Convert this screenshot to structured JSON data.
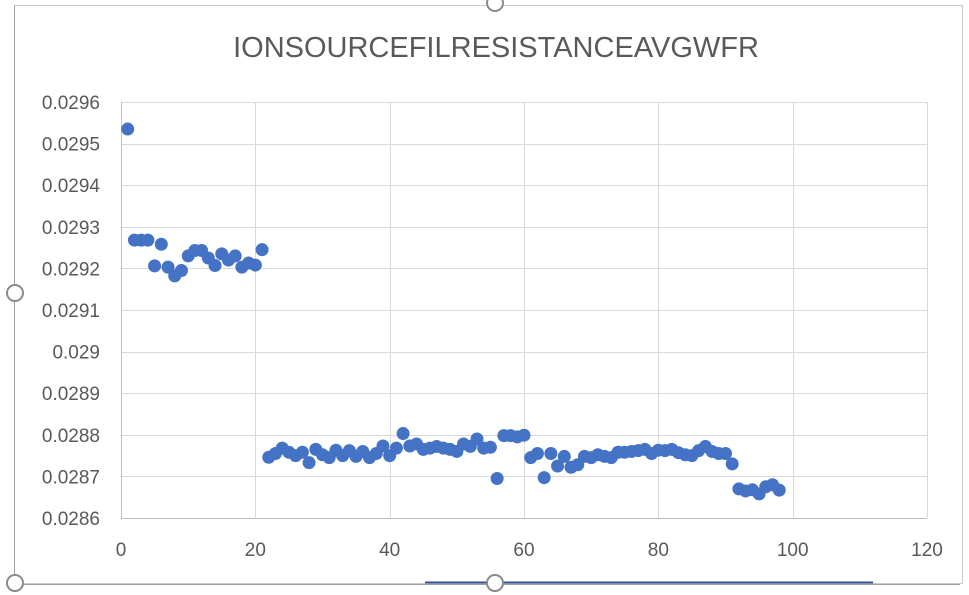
{
  "colors": {
    "marker": "#4472C4",
    "grid": "#D9D9D9",
    "text": "#595959"
  },
  "chart_data": {
    "type": "scatter",
    "title": "IONSOURCEFILRESISTANCEAVGWFR",
    "xlabel": "",
    "ylabel": "",
    "xlim": [
      0,
      120
    ],
    "ylim": [
      0.0286,
      0.0296
    ],
    "x_ticks": [
      0,
      20,
      40,
      60,
      80,
      100,
      120
    ],
    "x_tick_labels": [
      "0",
      "20",
      "40",
      "60",
      "80",
      "100",
      "120"
    ],
    "y_ticks": [
      0.0286,
      0.0287,
      0.0288,
      0.0289,
      0.029,
      0.0291,
      0.0292,
      0.0293,
      0.0294,
      0.0295,
      0.0296
    ],
    "y_tick_labels": [
      "0.0286",
      "0.0287",
      "0.0288",
      "0.0289",
      "0.029",
      "0.0291",
      "0.0292",
      "0.0293",
      "0.0294",
      "0.0295",
      "0.0296"
    ],
    "grid": true,
    "legend": "none",
    "series": [
      {
        "x": [
          1,
          2,
          3,
          4,
          5,
          6,
          7,
          8,
          9,
          10,
          11,
          12,
          13,
          14,
          15,
          16,
          17,
          18,
          19,
          20,
          21,
          22,
          23,
          24,
          25,
          26,
          27,
          28,
          29,
          30,
          31,
          32,
          33,
          34,
          35,
          36,
          37,
          38,
          39,
          40,
          41,
          42,
          43,
          44,
          45,
          46,
          47,
          48,
          49,
          50,
          51,
          52,
          53,
          54,
          55,
          56,
          57,
          58,
          59,
          60,
          61,
          62,
          63,
          64,
          65,
          66,
          67,
          68,
          69,
          70,
          71,
          72,
          73,
          74,
          75,
          76,
          77,
          78,
          79,
          80,
          81,
          82,
          83,
          84,
          85,
          86,
          87,
          88,
          89,
          90,
          91,
          92,
          93,
          94,
          95,
          96,
          97,
          98
        ],
        "y": [
          0.029535,
          0.029268,
          0.029268,
          0.029268,
          0.029206,
          0.029258,
          0.029203,
          0.029182,
          0.029195,
          0.02923,
          0.029243,
          0.029243,
          0.029225,
          0.029207,
          0.029235,
          0.02922,
          0.02923,
          0.029203,
          0.029213,
          0.029208,
          0.029245,
          0.028746,
          0.028755,
          0.028768,
          0.028758,
          0.02875,
          0.028758,
          0.028733,
          0.028765,
          0.028752,
          0.028745,
          0.028763,
          0.02875,
          0.028762,
          0.028748,
          0.02876,
          0.028745,
          0.028755,
          0.028773,
          0.02875,
          0.028768,
          0.028803,
          0.028773,
          0.028778,
          0.028765,
          0.028768,
          0.028772,
          0.028768,
          0.028765,
          0.02876,
          0.028778,
          0.028772,
          0.02879,
          0.028768,
          0.02877,
          0.028695,
          0.028798,
          0.028798,
          0.028795,
          0.028799,
          0.028745,
          0.028755,
          0.028697,
          0.028755,
          0.028725,
          0.028748,
          0.028722,
          0.028728,
          0.028748,
          0.028745,
          0.028752,
          0.028748,
          0.028745,
          0.028758,
          0.028758,
          0.02876,
          0.028762,
          0.028765,
          0.028755,
          0.028763,
          0.028762,
          0.028765,
          0.028757,
          0.028752,
          0.02875,
          0.028762,
          0.028772,
          0.02876,
          0.028755,
          0.028755,
          0.02873,
          0.02867,
          0.028665,
          0.028668,
          0.028658,
          0.028675,
          0.02868,
          0.028667
        ]
      }
    ]
  }
}
